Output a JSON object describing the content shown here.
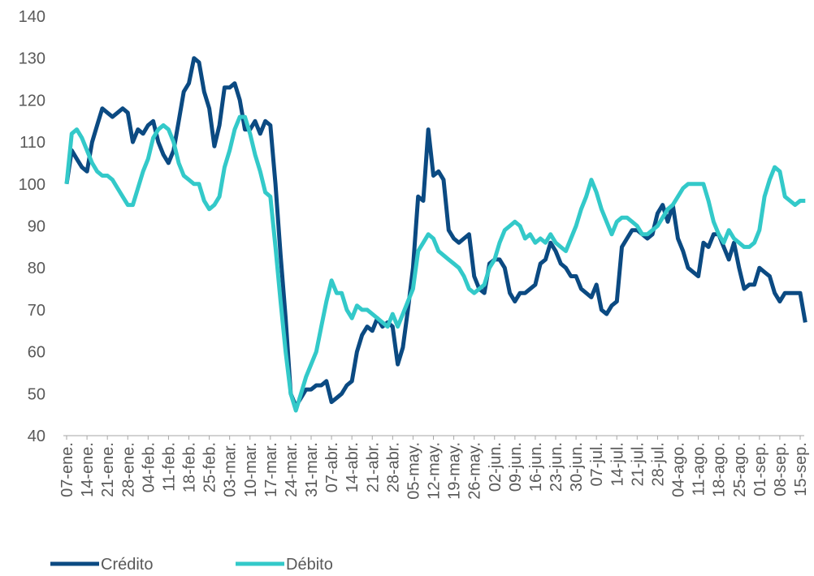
{
  "chart_data": {
    "type": "line",
    "categories": [
      "07-ene.",
      null,
      null,
      null,
      "14-ene.",
      null,
      null,
      null,
      "21-ene.",
      null,
      null,
      null,
      "28-ene.",
      null,
      null,
      null,
      "04-feb.",
      null,
      null,
      null,
      "11-feb.",
      null,
      null,
      null,
      "18-feb.",
      null,
      null,
      null,
      "25-feb.",
      null,
      null,
      null,
      "03-mar.",
      null,
      null,
      null,
      "10-mar.",
      null,
      null,
      null,
      "17-mar.",
      null,
      null,
      null,
      "24-mar.",
      null,
      null,
      null,
      "31-mar.",
      null,
      null,
      null,
      "07-abr.",
      null,
      null,
      null,
      "14-abr.",
      null,
      null,
      null,
      "21-abr.",
      null,
      null,
      null,
      "28-abr.",
      null,
      null,
      null,
      "05-may.",
      null,
      null,
      null,
      "12-may.",
      null,
      null,
      null,
      "19-may.",
      null,
      null,
      null,
      "26-may.",
      null,
      null,
      null,
      "02-jun.",
      null,
      null,
      null,
      "09-jun.",
      null,
      null,
      null,
      "16-jun.",
      null,
      null,
      null,
      "23-jun.",
      null,
      null,
      null,
      "30-jun.",
      null,
      null,
      null,
      "07-jul.",
      null,
      null,
      null,
      "14-jul.",
      null,
      null,
      null,
      "21-jul.",
      null,
      null,
      null,
      "28-jul.",
      null,
      null,
      null,
      "04-ago.",
      null,
      null,
      null,
      "11-ago.",
      null,
      null,
      null,
      "18-ago.",
      null,
      null,
      null,
      "25-ago.",
      null,
      null,
      null,
      "01-sep.",
      null,
      null,
      null,
      "08-sep.",
      null,
      null,
      null,
      "15-sep.",
      null
    ],
    "series": [
      {
        "name": "Crédito",
        "color": "#0b4a82",
        "values": [
          100,
          108,
          106,
          104,
          103,
          110,
          114,
          118,
          117,
          116,
          117,
          118,
          117,
          110,
          113,
          112,
          114,
          115,
          110,
          107,
          105,
          108,
          115,
          122,
          124,
          130,
          129,
          122,
          118,
          109,
          114,
          123,
          123,
          124,
          120,
          113,
          113,
          115,
          112,
          115,
          114,
          100,
          83,
          68,
          50,
          47,
          49,
          51,
          51,
          52,
          52,
          53,
          48,
          49,
          50,
          52,
          53,
          60,
          64,
          66,
          65,
          68,
          66,
          67,
          66,
          57,
          61,
          70,
          80,
          97,
          96,
          113,
          102,
          103,
          101,
          89,
          87,
          86,
          87,
          88,
          78,
          75,
          74,
          81,
          82,
          82,
          80,
          74,
          72,
          74,
          74,
          75,
          76,
          81,
          82,
          86,
          84,
          81,
          80,
          78,
          78,
          75,
          74,
          73,
          76,
          70,
          69,
          71,
          72,
          85,
          87,
          89,
          89,
          88,
          87,
          88,
          93,
          95,
          91,
          95,
          87,
          84,
          80,
          79,
          78,
          86,
          85,
          88,
          88,
          85,
          82,
          86,
          80,
          75,
          76,
          76,
          80,
          79,
          78,
          74,
          72,
          74,
          74,
          74,
          74,
          67
        ]
      },
      {
        "name": "Débito",
        "color": "#33c9c9",
        "values": [
          100,
          112,
          113,
          111,
          108,
          105,
          103,
          102,
          102,
          101,
          99,
          97,
          95,
          95,
          99,
          103,
          106,
          111,
          113,
          114,
          113,
          110,
          105,
          102,
          101,
          100,
          100,
          96,
          94,
          95,
          97,
          104,
          108,
          113,
          116,
          116,
          112,
          107,
          103,
          98,
          97,
          85,
          72,
          60,
          50,
          46,
          50,
          54,
          57,
          60,
          66,
          72,
          77,
          74,
          74,
          70,
          68,
          71,
          70,
          70,
          69,
          68,
          67,
          66,
          69,
          66,
          69,
          72,
          75,
          84,
          86,
          88,
          87,
          84,
          83,
          82,
          81,
          80,
          78,
          75,
          74,
          75,
          76,
          80,
          82,
          86,
          89,
          90,
          91,
          90,
          87,
          88,
          86,
          87,
          86,
          88,
          86,
          85,
          84,
          87,
          90,
          94,
          97,
          101,
          98,
          94,
          91,
          88,
          91,
          92,
          92,
          91,
          90,
          88,
          88,
          89,
          90,
          92,
          94,
          95,
          97,
          99,
          100,
          100,
          100,
          100,
          96,
          91,
          88,
          86,
          89,
          87,
          86,
          85,
          85,
          86,
          89,
          97,
          101,
          104,
          103,
          97,
          96,
          95,
          96,
          96
        ]
      }
    ],
    "ylim": [
      40,
      140
    ],
    "yticks": [
      40,
      50,
      60,
      70,
      80,
      90,
      100,
      110,
      120,
      130,
      140
    ],
    "grid": false
  }
}
